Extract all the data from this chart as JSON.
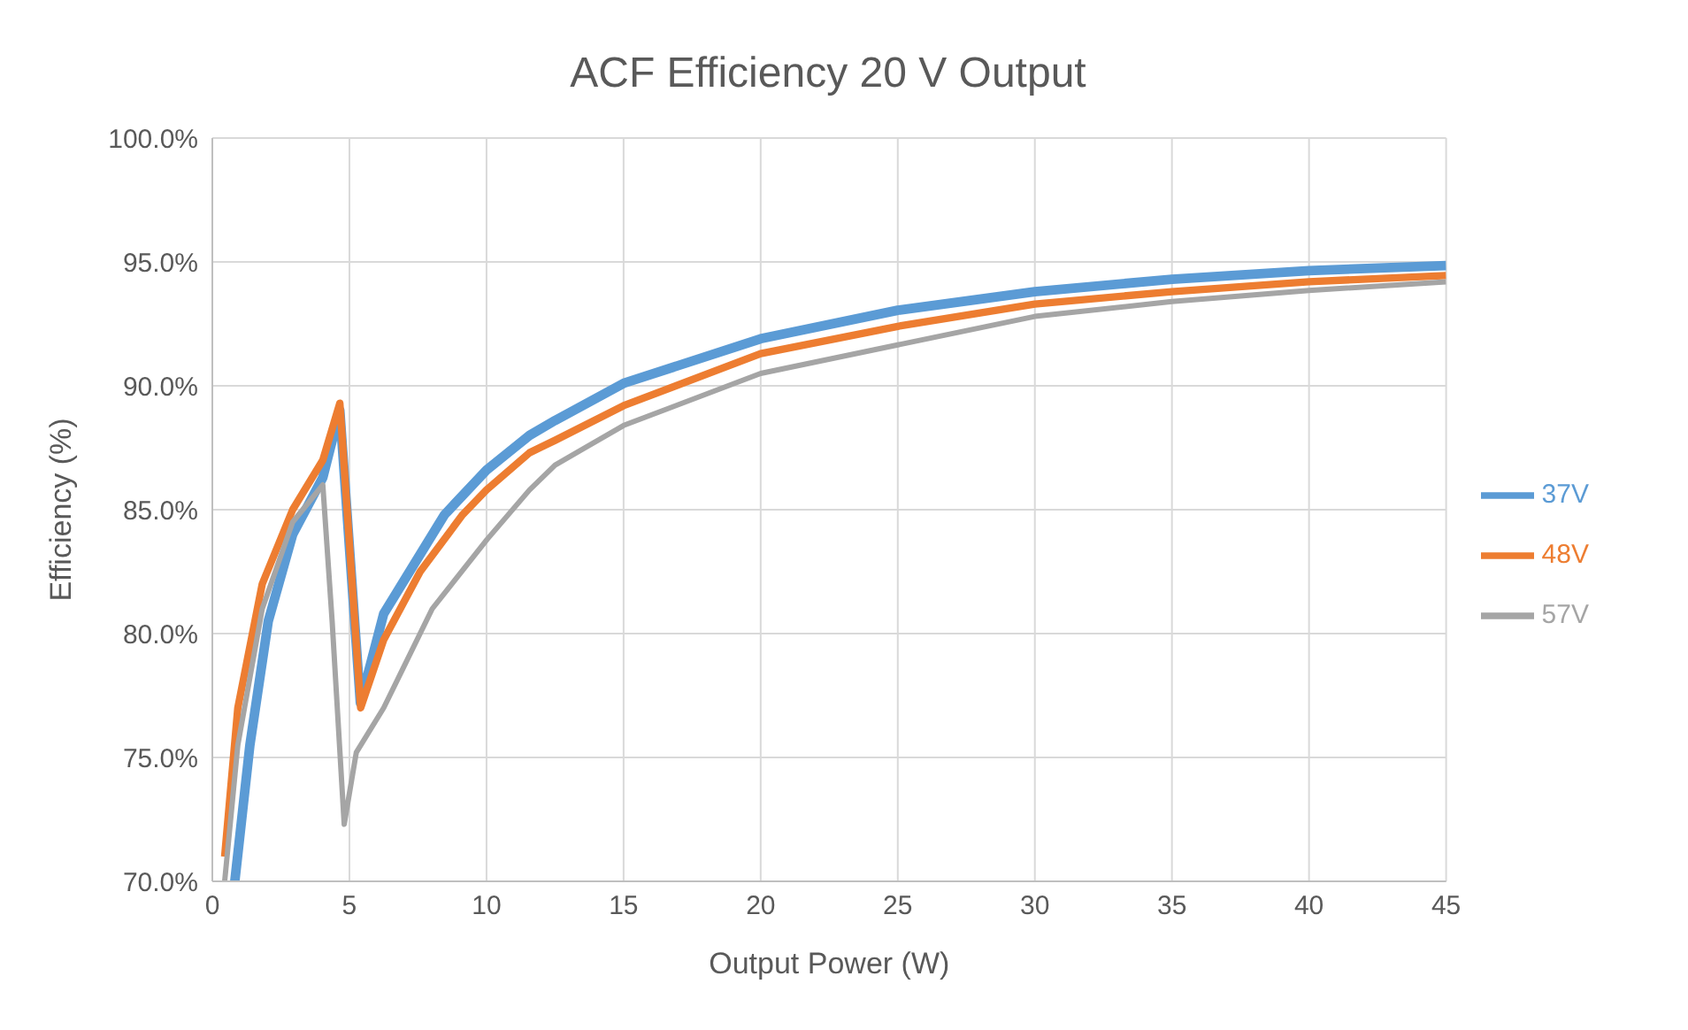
{
  "chart_data": {
    "type": "line",
    "title": "ACF Efficiency 20 V Output",
    "xlabel": "Output Power (W)",
    "ylabel": "Efficiency (%)",
    "xlim": [
      0,
      45
    ],
    "xticks": [
      0,
      5,
      10,
      15,
      20,
      25,
      30,
      35,
      40,
      45
    ],
    "ylim": [
      70,
      100
    ],
    "yticks": [
      {
        "value": 70,
        "label": "70.0%"
      },
      {
        "value": 75,
        "label": "75.0%"
      },
      {
        "value": 80,
        "label": "80.0%"
      },
      {
        "value": 85,
        "label": "85.0%"
      },
      {
        "value": 90,
        "label": "90.0%"
      },
      {
        "value": 95,
        "label": "95.0%"
      },
      {
        "value": 100,
        "label": "100.0%"
      }
    ],
    "grid": true,
    "legend": "right",
    "marker": "none",
    "line_style": "solid",
    "series": [
      {
        "name": "37V",
        "color": "#5b9bd5",
        "x": [
          0.82,
          1.37,
          2.04,
          2.93,
          4.03,
          4.65,
          5.4,
          6.25,
          8.47,
          10,
          11.57,
          12.5,
          15,
          20,
          25,
          30,
          35,
          40,
          45
        ],
        "values": [
          70,
          75.5,
          80.5,
          84,
          86.3,
          89,
          77.2,
          80.8,
          84.8,
          86.6,
          88,
          88.6,
          90.1,
          91.9,
          93.05,
          93.8,
          94.3,
          94.65,
          94.85
        ]
      },
      {
        "name": "48V",
        "color": "#ed7d31",
        "x": [
          0.45,
          0.93,
          1.82,
          2.93,
          4.03,
          4.65,
          5.41,
          6.25,
          7.58,
          9.13,
          10,
          11.57,
          12.5,
          15,
          20,
          25,
          30,
          35,
          40,
          45
        ],
        "values": [
          71,
          77,
          82,
          85,
          87,
          89.3,
          77,
          79.75,
          82.5,
          84.8,
          85.8,
          87.3,
          87.8,
          89.2,
          91.3,
          92.4,
          93.3,
          93.8,
          94.2,
          94.45
        ]
      },
      {
        "name": "57V",
        "color": "#a5a5a5",
        "x": [
          0.45,
          0.93,
          1.82,
          2.93,
          4.03,
          4.37,
          4.81,
          5.25,
          6.25,
          8.02,
          10.02,
          11.57,
          12.5,
          15,
          20,
          25,
          30,
          35,
          40,
          45
        ],
        "values": [
          70,
          75.5,
          81,
          84.5,
          86,
          80.5,
          72.3,
          75.2,
          77,
          81,
          83.8,
          85.8,
          86.8,
          88.4,
          90.5,
          91.65,
          92.8,
          93.4,
          93.85,
          94.2
        ]
      }
    ]
  }
}
